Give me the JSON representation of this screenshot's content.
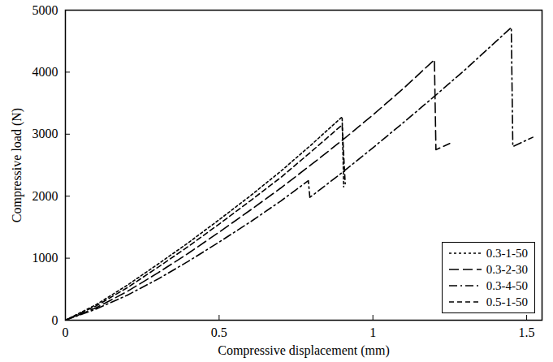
{
  "chart_data": {
    "type": "line",
    "x_label": "Compressive displacement (mm)",
    "y_label": "Compressive load (N)",
    "xlim": [
      0,
      1.55
    ],
    "xticks": [
      0,
      0.5,
      1,
      1.5
    ],
    "ylim": [
      0,
      5000
    ],
    "yticks": [
      0,
      1000,
      2000,
      3000,
      4000,
      5000
    ],
    "grid": false,
    "legend": "bottom-right",
    "series": [
      {
        "name": "0.3-1-50",
        "color": "#000000",
        "line_style": "short_dash",
        "x": [
          0,
          0.1,
          0.2,
          0.3,
          0.4,
          0.5,
          0.6,
          0.7,
          0.8,
          0.9,
          0.905
        ],
        "values": [
          0,
          250,
          560,
          900,
          1250,
          1620,
          2000,
          2400,
          2830,
          3280,
          2150
        ]
      },
      {
        "name": "0.3-2-30",
        "color": "#000000",
        "line_style": "long_dash",
        "x": [
          0,
          0.1,
          0.2,
          0.3,
          0.4,
          0.5,
          0.6,
          0.7,
          0.8,
          0.9,
          1.0,
          1.1,
          1.2,
          1.205,
          1.25
        ],
        "values": [
          0,
          200,
          460,
          760,
          1080,
          1420,
          1770,
          2130,
          2510,
          2900,
          3310,
          3740,
          4200,
          2750,
          2850
        ]
      },
      {
        "name": "0.3-4-50",
        "color": "#000000",
        "line_style": "dash_dot",
        "x": [
          0,
          0.1,
          0.2,
          0.3,
          0.4,
          0.5,
          0.6,
          0.7,
          0.79,
          0.795,
          0.9,
          1.0,
          1.1,
          1.2,
          1.3,
          1.45,
          1.455,
          1.52
        ],
        "values": [
          0,
          180,
          400,
          660,
          950,
          1260,
          1580,
          1920,
          2250,
          1980,
          2380,
          2780,
          3190,
          3610,
          4040,
          4720,
          2800,
          2950
        ]
      },
      {
        "name": "0.5-1-50",
        "color": "#000000",
        "line_style": "dashed",
        "x": [
          0,
          0.1,
          0.2,
          0.3,
          0.4,
          0.5,
          0.6,
          0.7,
          0.8,
          0.9,
          0.91
        ],
        "values": [
          0,
          230,
          520,
          850,
          1190,
          1550,
          1920,
          2300,
          2720,
          3150,
          2200
        ]
      }
    ]
  }
}
